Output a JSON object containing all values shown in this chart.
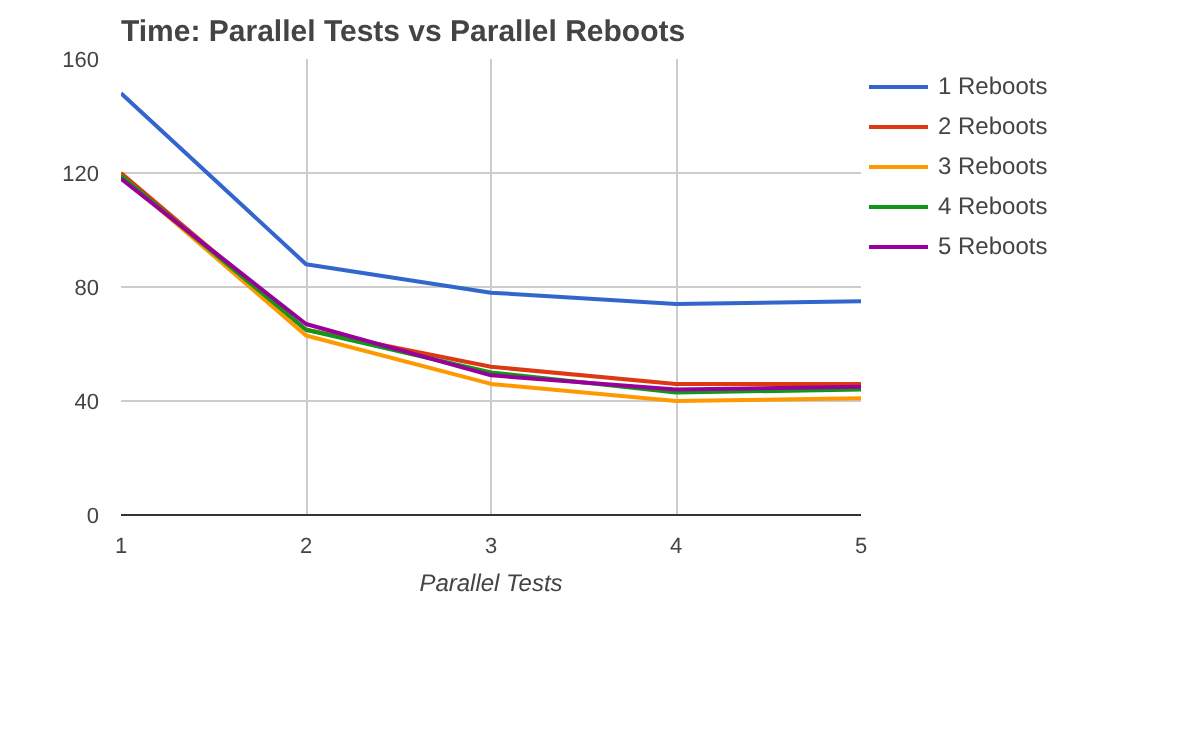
{
  "chart_data": {
    "type": "line",
    "title": "Time: Parallel Tests vs Parallel Reboots",
    "xlabel": "Parallel Tests",
    "x": [
      1,
      2,
      3,
      4,
      5
    ],
    "xlim": [
      1,
      5
    ],
    "xticks": [
      1,
      2,
      3,
      4,
      5
    ],
    "ylim": [
      0,
      160
    ],
    "yticks": [
      0,
      40,
      80,
      120,
      160
    ],
    "grid": true,
    "legend": "right",
    "series": [
      {
        "name": "1 Reboots",
        "color": "#3366cc",
        "values": [
          148,
          88,
          78,
          74,
          75
        ]
      },
      {
        "name": "2 Reboots",
        "color": "#dc3912",
        "values": [
          120,
          65,
          52,
          46,
          46
        ]
      },
      {
        "name": "3 Reboots",
        "color": "#ff9900",
        "values": [
          119,
          63,
          46,
          40,
          41
        ]
      },
      {
        "name": "4 Reboots",
        "color": "#109618",
        "values": [
          119,
          65,
          50,
          43,
          44
        ]
      },
      {
        "name": "5 Reboots",
        "color": "#990099",
        "values": [
          118,
          67,
          49,
          44,
          45
        ]
      }
    ]
  }
}
